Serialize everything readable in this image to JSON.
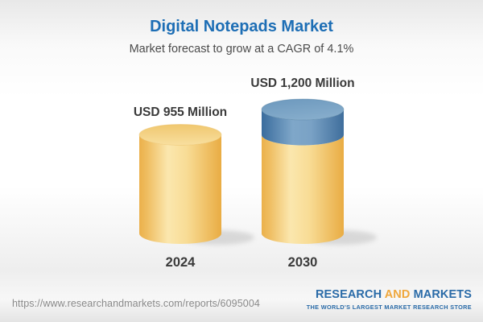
{
  "header": {
    "title": "Digital Notepads Market",
    "subtitle": "Market forecast to grow at a CAGR of 4.1%"
  },
  "chart_data": {
    "type": "bar",
    "subtype": "3d-cylinder",
    "title": "Digital Notepads Market",
    "subtitle": "Market forecast to grow at a CAGR of 4.1%",
    "cagr_percent": 4.1,
    "unit": "USD Million",
    "categories": [
      "2024",
      "2030"
    ],
    "values": [
      955,
      1200
    ],
    "value_labels": [
      "USD 955 Million",
      "USD 1,200 Million"
    ],
    "series": [
      {
        "name": "current-market",
        "color_key": "base",
        "values": [
          955,
          955
        ]
      },
      {
        "name": "forecast-growth",
        "color_key": "growth",
        "values": [
          0,
          245
        ]
      }
    ],
    "ylim": [
      0,
      1200
    ],
    "gridlines": false,
    "legend": false,
    "colors": {
      "base": "#F5D588",
      "growth": "#5D8BB5",
      "label_text": "#3A3A3A",
      "title_text": "#1D6EB5"
    }
  },
  "footer": {
    "url": "https://www.researchandmarkets.com/reports/6095004",
    "logo": {
      "part1": "RESEARCH",
      "part2": "AND",
      "part3": "MARKETS",
      "tagline": "THE WORLD'S LARGEST MARKET RESEARCH STORE",
      "blue": "#2A6BA8",
      "orange": "#EFA73C"
    }
  }
}
